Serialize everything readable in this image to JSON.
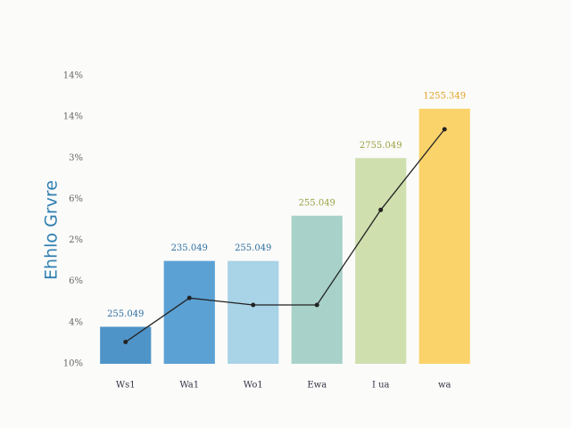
{
  "chart_data": {
    "type": "bar",
    "title": "Ehhlo Grvre",
    "categories": [
      "Ws1",
      "Wa1",
      "Wo1",
      "Ewa",
      "I ua",
      "wa"
    ],
    "values": [
      0.9,
      2.5,
      2.5,
      3.6,
      5.0,
      6.2
    ],
    "colors": [
      "#4f94c8",
      "#5ba1d4",
      "#a9d3e6",
      "#a8d2c9",
      "#cfdfae",
      "#fbd36b"
    ],
    "annotations": [
      "255.049",
      "235.049",
      "255.049",
      "255.049",
      "2755.049",
      "1255.349"
    ],
    "line": {
      "color": "#222222",
      "values": [
        0.53,
        1.6,
        1.43,
        1.43,
        3.74,
        5.7
      ]
    },
    "ylim": [
      0,
      7
    ],
    "yticks": [
      {
        "value": 0,
        "label": "10%"
      },
      {
        "value": 1,
        "label": "4%"
      },
      {
        "value": 2,
        "label": "6%"
      },
      {
        "value": 3,
        "label": "2%"
      },
      {
        "value": 4,
        "label": "6%"
      },
      {
        "value": 5,
        "label": "3%"
      },
      {
        "value": 6,
        "label": "14%"
      },
      {
        "value": 7,
        "label": "14%"
      }
    ],
    "grid": false
  }
}
